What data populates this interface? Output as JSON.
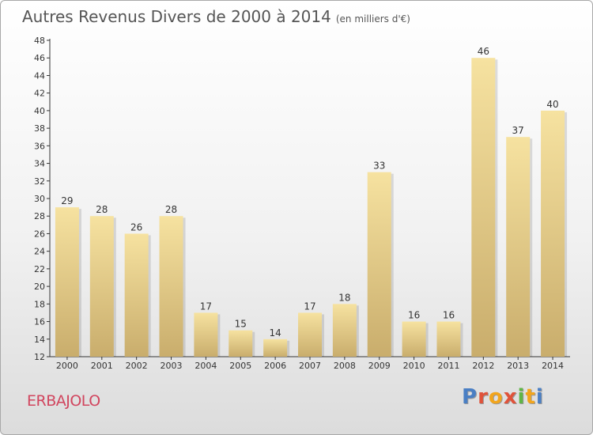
{
  "header": {
    "title": "Autres Revenus Divers de 2000 à 2014",
    "unit": "(en milliers d'€)"
  },
  "footer": {
    "place": "ERBAJOLO",
    "logo": "Proxiti"
  },
  "colors": {
    "bar_light": "#f6e2a0",
    "bar_dark": "#c9ad6c",
    "axis": "#333333",
    "place_text": "#d1455e",
    "logo_letters": [
      "#4a7fc4",
      "#e0533a",
      "#f2a51c",
      "#e0533a",
      "#5fb546",
      "#f2a51c",
      "#4a7fc4"
    ]
  },
  "chart_data": {
    "type": "bar",
    "title": "Autres Revenus Divers de 2000 à 2014",
    "subtitle": "(en milliers d'€)",
    "xlabel": "",
    "ylabel": "",
    "categories": [
      "2000",
      "2001",
      "2002",
      "2003",
      "2004",
      "2005",
      "2006",
      "2007",
      "2008",
      "2009",
      "2010",
      "2011",
      "2012",
      "2013",
      "2014"
    ],
    "values": [
      29,
      28,
      26,
      28,
      17,
      15,
      14,
      17,
      18,
      33,
      16,
      16,
      46,
      37,
      40
    ],
    "ylim": [
      12,
      48
    ],
    "yticks": [
      12,
      14,
      16,
      18,
      20,
      22,
      24,
      26,
      28,
      30,
      32,
      34,
      36,
      38,
      40,
      42,
      44,
      46,
      48
    ],
    "grid": false,
    "data_labels": true
  }
}
